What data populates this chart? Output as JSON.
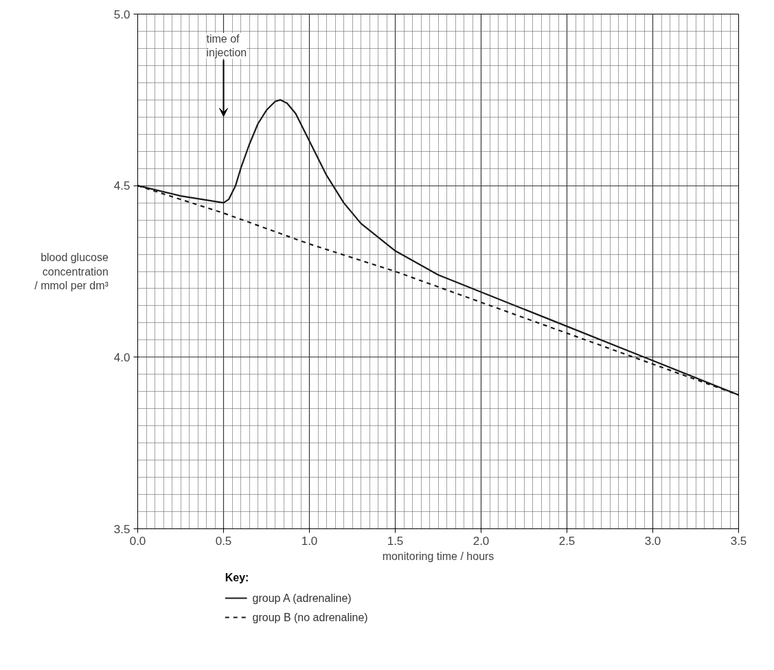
{
  "chart_data": {
    "type": "line",
    "xlabel": "monitoring time / hours",
    "ylabel": "blood glucose\nconcentration\n/ mmol per dm³",
    "legend_title": "Key:",
    "legend": "bottom left",
    "grid": true,
    "marker": "none",
    "xlim": [
      0,
      3.5
    ],
    "ylim": [
      3.5,
      5.0
    ],
    "xticks": [
      {
        "value": 0,
        "label": "0.0"
      },
      {
        "value": 0.5,
        "label": "0.5"
      },
      {
        "value": 1.0,
        "label": "1.0"
      },
      {
        "value": 1.5,
        "label": "1.5"
      },
      {
        "value": 2.0,
        "label": "2.0"
      },
      {
        "value": 2.5,
        "label": "2.5"
      },
      {
        "value": 3.0,
        "label": "3.0"
      },
      {
        "value": 3.5,
        "label": "3.5"
      }
    ],
    "yticks": [
      {
        "value": 3.5,
        "label": "3.5"
      },
      {
        "value": 4.0,
        "label": "4.0"
      },
      {
        "value": 4.5,
        "label": "4.5"
      },
      {
        "value": 5.0,
        "label": "5.0"
      }
    ],
    "annotations": [
      "time of\ninjection"
    ],
    "series": [
      {
        "name": "group A (adrenaline)",
        "color": "#1a1a1a",
        "line_style": "solid",
        "x": [
          0,
          0.25,
          0.5,
          0.53,
          0.57,
          0.6,
          0.65,
          0.7,
          0.75,
          0.8,
          0.83,
          0.87,
          0.92,
          1.0,
          1.05,
          1.1,
          1.2,
          1.3,
          1.4,
          1.5,
          1.75,
          2.0,
          2.5,
          3.0,
          3.5
        ],
        "values": [
          4.5,
          4.47,
          4.45,
          4.46,
          4.5,
          4.55,
          4.62,
          4.68,
          4.72,
          4.745,
          4.75,
          4.74,
          4.71,
          4.63,
          4.58,
          4.53,
          4.45,
          4.39,
          4.35,
          4.31,
          4.24,
          4.19,
          4.09,
          3.99,
          3.89
        ]
      },
      {
        "name": "group B (no adrenaline)",
        "color": "#1a1a1a",
        "line_style": "dashed",
        "x": [
          0,
          0.5,
          1.0,
          1.5,
          2.0,
          2.5,
          3.0,
          3.5
        ],
        "values": [
          4.5,
          4.42,
          4.33,
          4.25,
          4.16,
          4.07,
          3.98,
          3.89
        ]
      }
    ]
  }
}
